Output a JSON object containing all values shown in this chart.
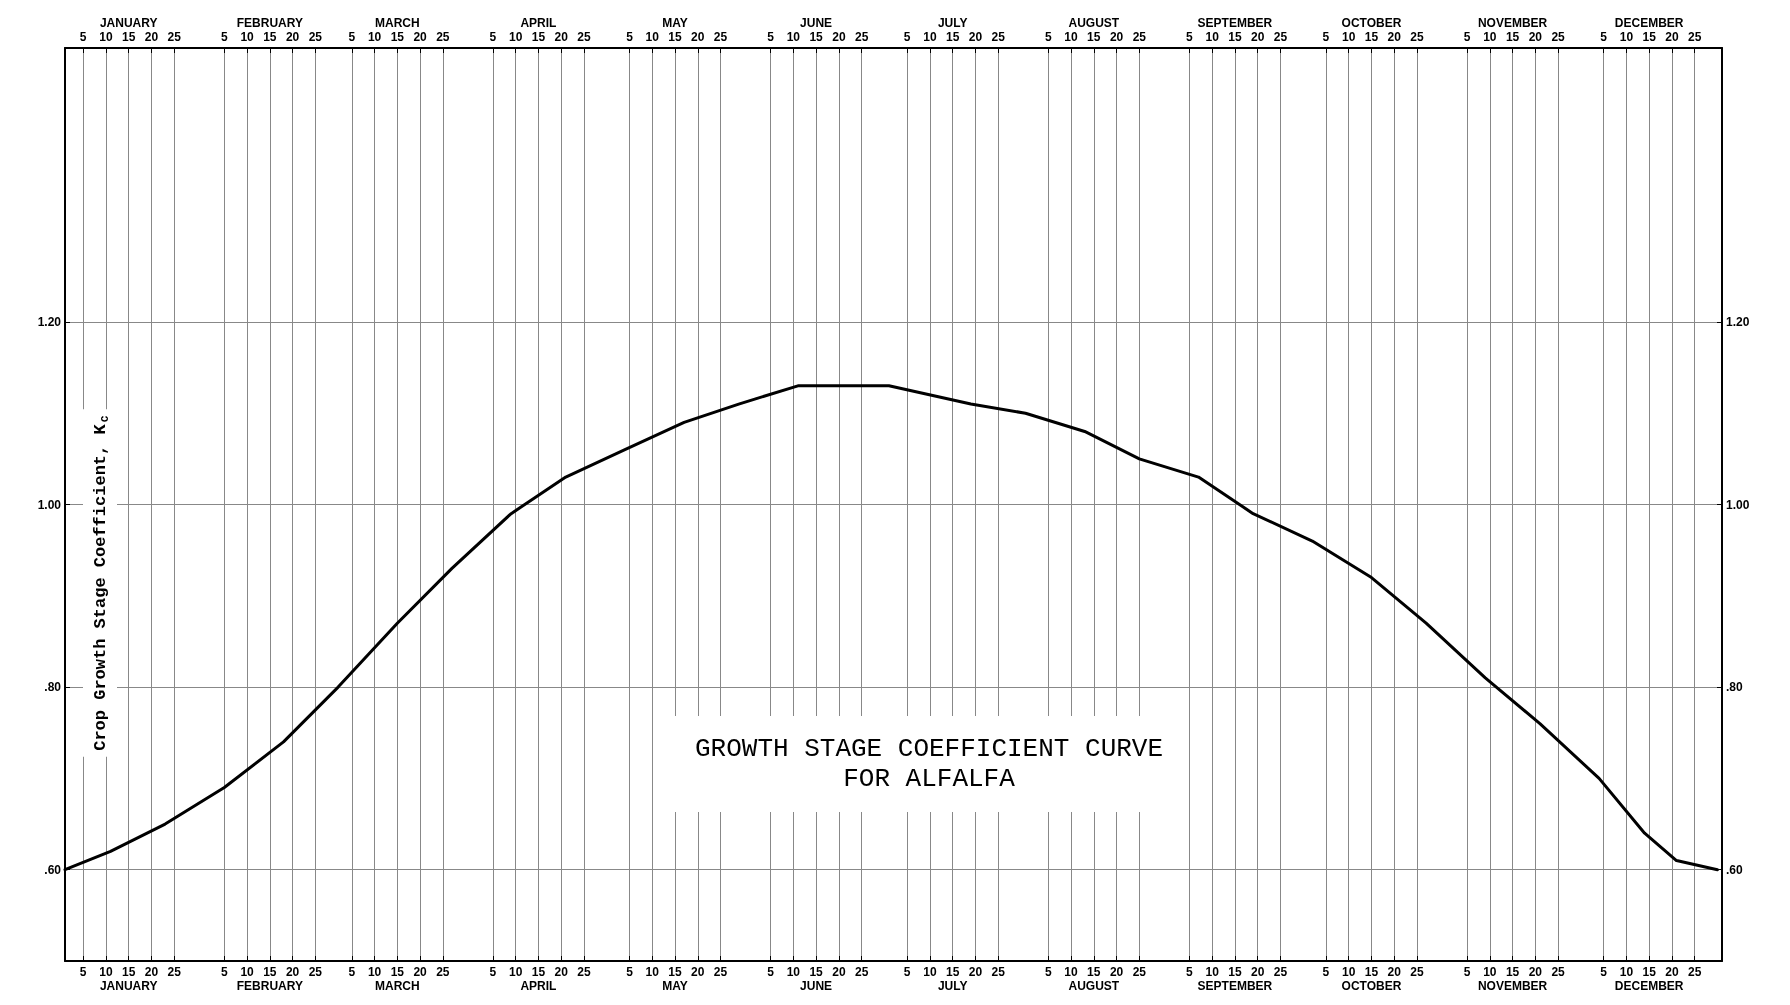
{
  "chart_data": {
    "type": "line",
    "title": "GROWTH STAGE COEFFICIENT CURVE\nFOR ALFALFA",
    "ylabel": "Crop Growth Stage Coefficient, K$_{c}$",
    "series": [
      {
        "color": "#000000",
        "x": [
          "--01-01",
          "--01-11",
          "--01-23",
          "--02-05",
          "--02-18",
          "--03-02",
          "--03-15",
          "--03-27",
          "--04-09",
          "--04-21",
          "--05-04",
          "--05-17",
          "--05-29",
          "--06-11",
          "--06-20",
          "--07-01",
          "--07-19",
          "--07-31",
          "--08-13",
          "--08-25",
          "--09-07",
          "--09-19",
          "--10-02",
          "--10-15",
          "--10-27",
          "--11-09",
          "--11-21",
          "--12-04",
          "--12-14",
          "--12-21",
          "--12-30"
        ],
        "values": [
          0.6,
          0.62,
          0.65,
          0.69,
          0.74,
          0.8,
          0.87,
          0.93,
          0.99,
          1.03,
          1.06,
          1.09,
          1.11,
          1.13,
          1.13,
          1.13,
          1.11,
          1.1,
          1.08,
          1.05,
          1.03,
          0.99,
          0.96,
          0.92,
          0.87,
          0.81,
          0.76,
          0.7,
          0.64,
          0.61,
          0.6
        ]
      }
    ],
    "xlim": [
      "--01-01",
      "--12-31"
    ],
    "x2lim": [
      "--01-01",
      "--12-31"
    ],
    "xticks": [
      {
        "value": "--01-05",
        "label": "5"
      },
      {
        "value": "--01-10",
        "label": "10"
      },
      {
        "value": "--01-15",
        "label": "15\nJANUARY"
      },
      {
        "value": "--01-20",
        "label": "20"
      },
      {
        "value": "--01-25",
        "label": "25"
      },
      {
        "value": "--02-05",
        "label": "5"
      },
      {
        "value": "--02-10",
        "label": "10"
      },
      {
        "value": "--02-15",
        "label": "15\nFEBRUARY"
      },
      {
        "value": "--02-20",
        "label": "20"
      },
      {
        "value": "--02-25",
        "label": "25"
      },
      {
        "value": "--03-05",
        "label": "5"
      },
      {
        "value": "--03-10",
        "label": "10"
      },
      {
        "value": "--03-15",
        "label": "15\nMARCH"
      },
      {
        "value": "--03-20",
        "label": "20"
      },
      {
        "value": "--03-25",
        "label": "25"
      },
      {
        "value": "--04-05",
        "label": "5"
      },
      {
        "value": "--04-10",
        "label": "10"
      },
      {
        "value": "--04-15",
        "label": "15\nAPRIL"
      },
      {
        "value": "--04-20",
        "label": "20"
      },
      {
        "value": "--04-25",
        "label": "25"
      },
      {
        "value": "--05-05",
        "label": "5"
      },
      {
        "value": "--05-10",
        "label": "10"
      },
      {
        "value": "--05-15",
        "label": "15\nMAY"
      },
      {
        "value": "--05-20",
        "label": "20"
      },
      {
        "value": "--05-25",
        "label": "25"
      },
      {
        "value": "--06-05",
        "label": "5"
      },
      {
        "value": "--06-10",
        "label": "10"
      },
      {
        "value": "--06-15",
        "label": "15\nJUNE"
      },
      {
        "value": "--06-20",
        "label": "20"
      },
      {
        "value": "--06-25",
        "label": "25"
      },
      {
        "value": "--07-05",
        "label": "5"
      },
      {
        "value": "--07-10",
        "label": "10"
      },
      {
        "value": "--07-15",
        "label": "15\nJULY"
      },
      {
        "value": "--07-20",
        "label": "20"
      },
      {
        "value": "--07-25",
        "label": "25"
      },
      {
        "value": "--08-05",
        "label": "5"
      },
      {
        "value": "--08-10",
        "label": "10"
      },
      {
        "value": "--08-15",
        "label": "15\nAUGUST"
      },
      {
        "value": "--08-20",
        "label": "20"
      },
      {
        "value": "--08-25",
        "label": "25"
      },
      {
        "value": "--09-05",
        "label": "5"
      },
      {
        "value": "--09-10",
        "label": "10"
      },
      {
        "value": "--09-15",
        "label": "15\nSEPTEMBER"
      },
      {
        "value": "--09-20",
        "label": "20"
      },
      {
        "value": "--09-25",
        "label": "25"
      },
      {
        "value": "--10-05",
        "label": "5"
      },
      {
        "value": "--10-10",
        "label": "10"
      },
      {
        "value": "--10-15",
        "label": "15\nOCTOBER"
      },
      {
        "value": "--10-20",
        "label": "20"
      },
      {
        "value": "--10-25",
        "label": "25"
      },
      {
        "value": "--11-05",
        "label": "5"
      },
      {
        "value": "--11-10",
        "label": "10"
      },
      {
        "value": "--11-15",
        "label": "15\nNOVEMBER"
      },
      {
        "value": "--11-20",
        "label": "20"
      },
      {
        "value": "--11-25",
        "label": "25"
      },
      {
        "value": "--12-05",
        "label": "5"
      },
      {
        "value": "--12-10",
        "label": "10"
      },
      {
        "value": "--12-15",
        "label": "15\nDECEMBER"
      },
      {
        "value": "--12-20",
        "label": "20"
      },
      {
        "value": "--12-25",
        "label": "25"
      }
    ],
    "x2ticks": [
      {
        "value": "--01-05",
        "label": "5"
      },
      {
        "value": "--01-10",
        "label": "10"
      },
      {
        "value": "--01-15",
        "label": "JANUARY\n15"
      },
      {
        "value": "--01-20",
        "label": "20"
      },
      {
        "value": "--01-25",
        "label": "25"
      },
      {
        "value": "--02-05",
        "label": "5"
      },
      {
        "value": "--02-10",
        "label": "10"
      },
      {
        "value": "--02-15",
        "label": "FEBRUARY\n15"
      },
      {
        "value": "--02-20",
        "label": "20"
      },
      {
        "value": "--02-25",
        "label": "25"
      },
      {
        "value": "--03-05",
        "label": "5"
      },
      {
        "value": "--03-10",
        "label": "10"
      },
      {
        "value": "--03-15",
        "label": "MARCH\n15"
      },
      {
        "value": "--03-20",
        "label": "20"
      },
      {
        "value": "--03-25",
        "label": "25"
      },
      {
        "value": "--04-05",
        "label": "5"
      },
      {
        "value": "--04-10",
        "label": "10"
      },
      {
        "value": "--04-15",
        "label": "APRIL\n15"
      },
      {
        "value": "--04-20",
        "label": "20"
      },
      {
        "value": "--04-25",
        "label": "25"
      },
      {
        "value": "--05-05",
        "label": "5"
      },
      {
        "value": "--05-10",
        "label": "10"
      },
      {
        "value": "--05-15",
        "label": "MAY\n15"
      },
      {
        "value": "--05-20",
        "label": "20"
      },
      {
        "value": "--05-25",
        "label": "25"
      },
      {
        "value": "--06-05",
        "label": "5"
      },
      {
        "value": "--06-10",
        "label": "10"
      },
      {
        "value": "--06-15",
        "label": "JUNE\n15"
      },
      {
        "value": "--06-20",
        "label": "20"
      },
      {
        "value": "--06-25",
        "label": "25"
      },
      {
        "value": "--07-05",
        "label": "5"
      },
      {
        "value": "--07-10",
        "label": "10"
      },
      {
        "value": "--07-15",
        "label": "JULY\n15"
      },
      {
        "value": "--07-20",
        "label": "20"
      },
      {
        "value": "--07-25",
        "label": "25"
      },
      {
        "value": "--08-05",
        "label": "5"
      },
      {
        "value": "--08-10",
        "label": "10"
      },
      {
        "value": "--08-15",
        "label": "AUGUST\n15"
      },
      {
        "value": "--08-20",
        "label": "20"
      },
      {
        "value": "--08-25",
        "label": "25"
      },
      {
        "value": "--09-05",
        "label": "5"
      },
      {
        "value": "--09-10",
        "label": "10"
      },
      {
        "value": "--09-15",
        "label": "SEPTEMBER\n15"
      },
      {
        "value": "--09-20",
        "label": "20"
      },
      {
        "value": "--09-25",
        "label": "25"
      },
      {
        "value": "--10-05",
        "label": "5"
      },
      {
        "value": "--10-10",
        "label": "10"
      },
      {
        "value": "--10-15",
        "label": "OCTOBER\n15"
      },
      {
        "value": "--10-20",
        "label": "20"
      },
      {
        "value": "--10-25",
        "label": "25"
      },
      {
        "value": "--11-05",
        "label": "5"
      },
      {
        "value": "--11-10",
        "label": "10"
      },
      {
        "value": "--11-15",
        "label": "NOVEMBER\n15"
      },
      {
        "value": "--11-20",
        "label": "20"
      },
      {
        "value": "--11-25",
        "label": "25"
      },
      {
        "value": "--12-05",
        "label": "5"
      },
      {
        "value": "--12-10",
        "label": "10"
      },
      {
        "value": "--12-15",
        "label": "DECEMBER\n15"
      },
      {
        "value": "--12-20",
        "label": "20"
      },
      {
        "value": "--12-25",
        "label": "25"
      }
    ],
    "ylim": [
      0.5,
      1.5
    ],
    "yticks": [
      {
        "value": 0.6,
        "label": ".60"
      },
      {
        "value": 0.8,
        "label": ".80"
      },
      {
        "value": 1.0,
        "label": "1.00"
      },
      {
        "value": 1.2,
        "label": "1.20"
      }
    ],
    "y2lim": [
      0.5,
      1.5
    ],
    "y2ticks": [
      {
        "value": 0.6,
        "label": ".60"
      },
      {
        "value": 0.8,
        "label": ".80"
      },
      {
        "value": 1.0,
        "label": "1.00"
      },
      {
        "value": 1.2,
        "label": "1.20"
      }
    ],
    "grid": true,
    "marker": "none",
    "line_style": "solid"
  }
}
